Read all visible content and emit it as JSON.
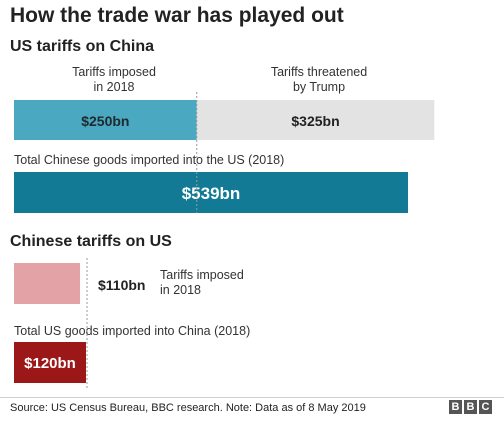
{
  "title": "How the trade war has played out",
  "sections": {
    "us": "US tariffs on China",
    "china": "Chinese tariffs on US"
  },
  "us_labels": {
    "imposed": "Tariffs imposed\nin 2018",
    "threatened": "Tariffs threatened\nby Trump",
    "total": "Total Chinese goods imported into the US (2018)"
  },
  "china_labels": {
    "imposed": "Tariffs imposed\nin 2018",
    "total": "Total US goods imported into China (2018)"
  },
  "footer": {
    "source": "Source: US Census Bureau, BBC research. Note: Data as of 8 May 2019",
    "logo_letters": [
      "B",
      "B",
      "C"
    ]
  },
  "colors": {
    "us_imposed": "#4aa8c1",
    "us_threatened": "#e3e3e3",
    "us_total": "#137a96",
    "china_imposed": "#e3a3a6",
    "china_total": "#9c1818",
    "marker": "#999999"
  },
  "chart_data": [
    {
      "type": "bar",
      "title": "US tariffs on China",
      "orientation": "horizontal",
      "stacked": true,
      "unit": "$bn",
      "series": [
        {
          "name": "Tariffs imposed in 2018",
          "value": 250,
          "label": "$250bn"
        },
        {
          "name": "Tariffs threatened by Trump",
          "value": 325,
          "label": "$325bn"
        }
      ],
      "total": {
        "name": "Total Chinese goods imported into the US (2018)",
        "value": 539,
        "label": "$539bn"
      }
    },
    {
      "type": "bar",
      "title": "Chinese tariffs on US",
      "orientation": "horizontal",
      "unit": "$bn",
      "series": [
        {
          "name": "Tariffs imposed in 2018",
          "value": 110,
          "label": "$110bn"
        }
      ],
      "total": {
        "name": "Total US goods imported into China (2018)",
        "value": 120,
        "label": "$120bn"
      }
    }
  ]
}
